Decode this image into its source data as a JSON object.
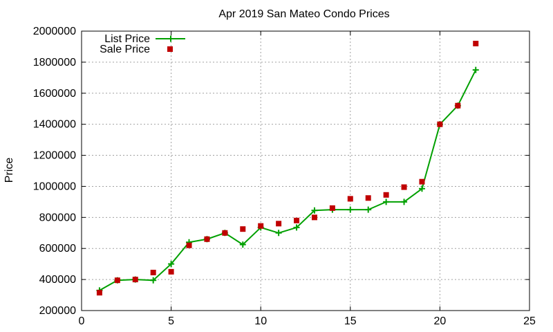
{
  "chart_data": {
    "type": "line",
    "title": "Apr 2019 San Mateo Condo Prices",
    "xlabel": "",
    "ylabel": "Price",
    "xlim": [
      0,
      25
    ],
    "ylim": [
      200000,
      2000000
    ],
    "xticks": [
      0,
      5,
      10,
      15,
      20,
      25
    ],
    "yticks": [
      200000,
      400000,
      600000,
      800000,
      1000000,
      1200000,
      1400000,
      1600000,
      1800000,
      2000000
    ],
    "grid": true,
    "legend_position": "top-left",
    "series": [
      {
        "name": "List Price",
        "kind": "line-with-plus-markers",
        "color": "#00a000",
        "x": [
          1,
          2,
          3,
          4,
          5,
          6,
          7,
          8,
          9,
          10,
          11,
          12,
          13,
          14,
          15,
          16,
          17,
          18,
          19,
          20,
          21,
          22
        ],
        "values": [
          330000,
          395000,
          400000,
          395000,
          500000,
          640000,
          660000,
          700000,
          625000,
          735000,
          700000,
          735000,
          845000,
          850000,
          850000,
          850000,
          900000,
          900000,
          985000,
          1400000,
          1520000,
          1750000
        ]
      },
      {
        "name": "Sale Price",
        "kind": "square-markers",
        "color": "#c00000",
        "x": [
          1,
          2,
          3,
          4,
          5,
          6,
          7,
          8,
          9,
          10,
          11,
          12,
          13,
          14,
          15,
          16,
          17,
          18,
          19,
          20,
          21,
          22
        ],
        "values": [
          315000,
          395000,
          400000,
          445000,
          450000,
          620000,
          660000,
          700000,
          725000,
          745000,
          760000,
          780000,
          800000,
          860000,
          920000,
          925000,
          945000,
          995000,
          1030000,
          1400000,
          1520000,
          1920000
        ]
      }
    ]
  }
}
